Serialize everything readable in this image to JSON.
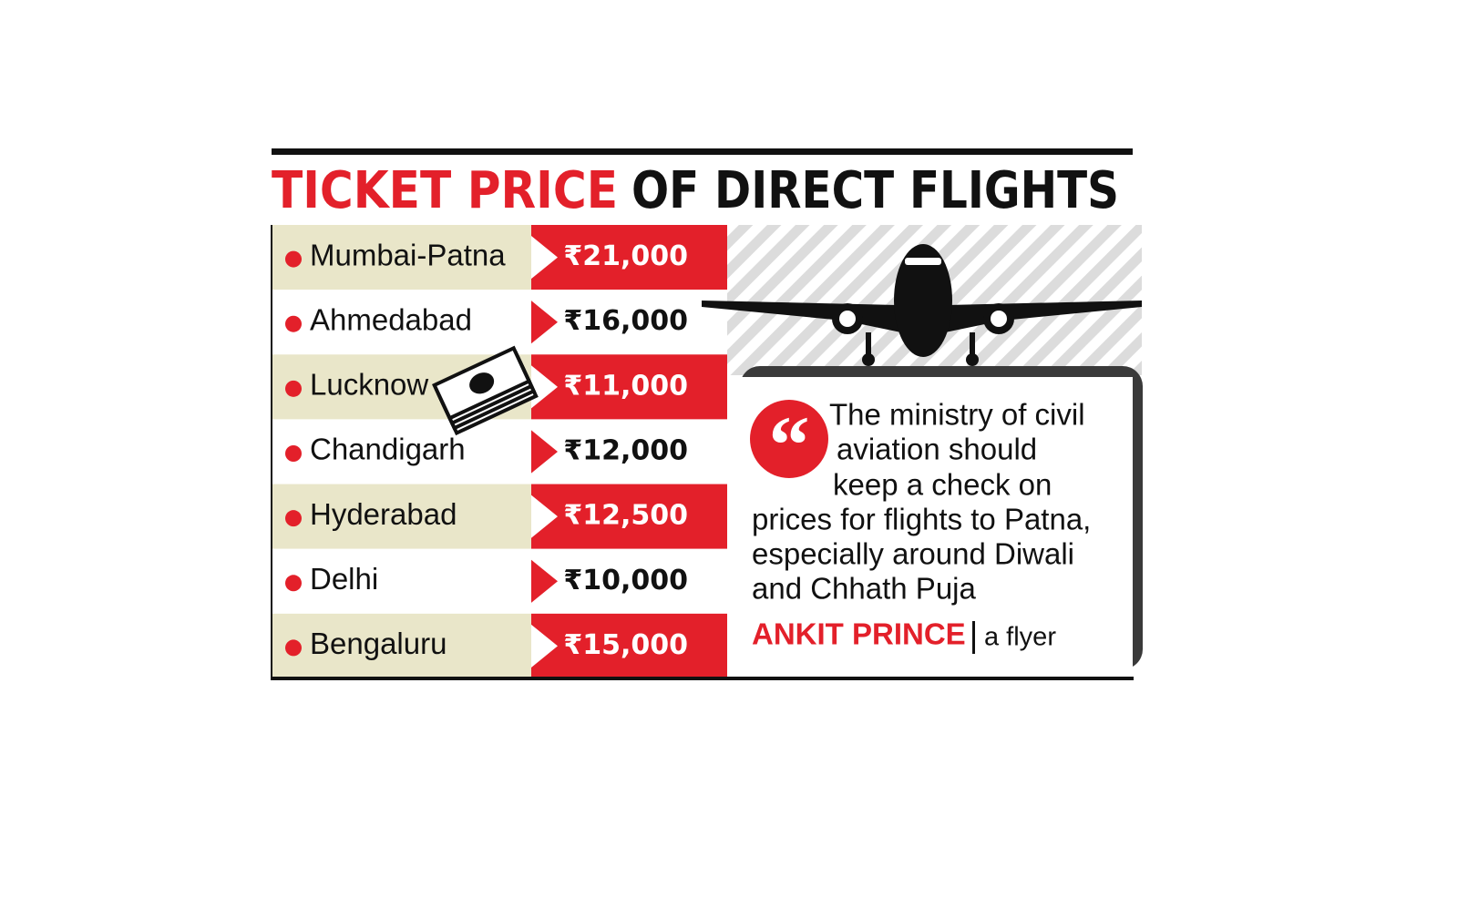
{
  "header": {
    "title_highlight": "TICKET PRICE",
    "title_rest": "OF DIRECT FLIGHTS"
  },
  "table": {
    "rows": [
      [
        "Mumbai-Patna",
        "₹21,000"
      ],
      [
        "Ahmedabad",
        "₹16,000"
      ],
      [
        "Lucknow",
        "₹11,000"
      ],
      [
        "Chandigarh",
        "₹12,000"
      ],
      [
        "Hyderabad",
        "₹12,500"
      ],
      [
        "Delhi",
        "₹10,000"
      ],
      [
        "Bengaluru",
        "₹15,000"
      ]
    ]
  },
  "quote": {
    "lines": [
      "The ministry of civil",
      "aviation should",
      "keep a check on",
      "prices for flights to Patna,",
      "especially around Diwali",
      "and Chhath Puja"
    ],
    "name": "ANKIT PRINCE",
    "role": "a flyer"
  }
}
